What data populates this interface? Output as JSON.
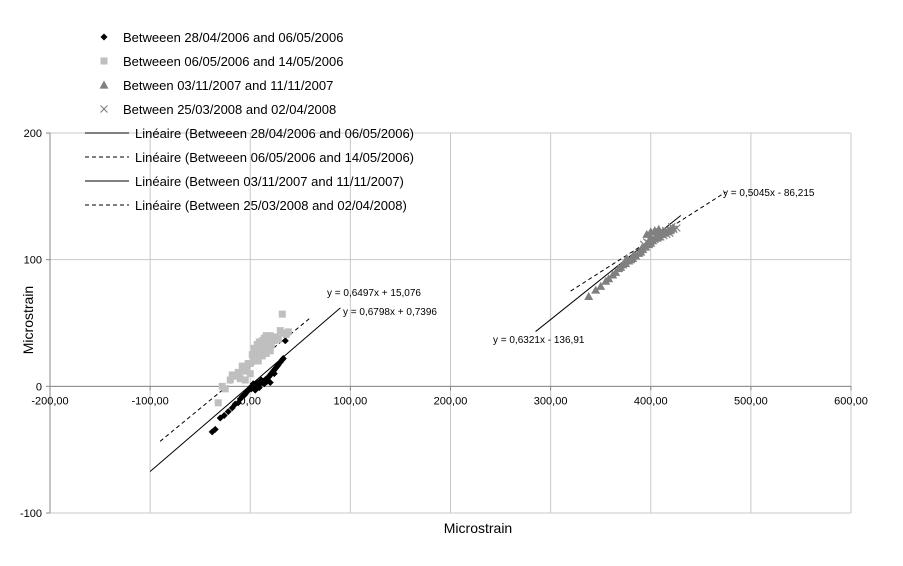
{
  "chart_data": {
    "type": "scatter",
    "title": "",
    "xlabel": "Microstrain",
    "ylabel": "Microstrain",
    "xlim": [
      -200,
      600
    ],
    "ylim": [
      -100,
      200
    ],
    "x_ticks": [
      -200,
      -100,
      0,
      100,
      200,
      300,
      400,
      500,
      600
    ],
    "x_tick_labels": [
      "-200,00",
      "-100,00",
      "0,00",
      "100,00",
      "200,00",
      "300,00",
      "400,00",
      "500,00",
      "600,00"
    ],
    "y_ticks": [
      -100,
      0,
      100,
      200
    ],
    "y_tick_labels": [
      "-100",
      "0",
      "100",
      "200"
    ],
    "grid": true,
    "legend_position": "top-left",
    "series": [
      {
        "name": "Betweeen 28/04/2006 and 06/05/2006",
        "marker": "diamond",
        "color": "#000000",
        "points": [
          [
            -38,
            -36
          ],
          [
            -35,
            -34
          ],
          [
            -30,
            -25
          ],
          [
            -26,
            -23
          ],
          [
            -22,
            -20
          ],
          [
            -18,
            -17
          ],
          [
            -15,
            -14
          ],
          [
            -12,
            -13
          ],
          [
            -10,
            -10
          ],
          [
            -8,
            -8
          ],
          [
            -6,
            -7
          ],
          [
            -4,
            -5
          ],
          [
            -2,
            -3
          ],
          [
            0,
            -1
          ],
          [
            2,
            -1
          ],
          [
            4,
            0
          ],
          [
            6,
            0
          ],
          [
            8,
            1
          ],
          [
            10,
            2
          ],
          [
            12,
            3
          ],
          [
            13,
            4
          ],
          [
            15,
            5
          ],
          [
            16,
            6
          ],
          [
            18,
            7
          ],
          [
            19,
            8
          ],
          [
            20,
            9
          ],
          [
            21,
            10
          ],
          [
            22,
            11
          ],
          [
            23,
            12
          ],
          [
            24,
            13
          ],
          [
            25,
            14
          ],
          [
            26,
            15
          ],
          [
            27,
            16
          ],
          [
            28,
            17
          ],
          [
            30,
            19
          ],
          [
            32,
            21
          ],
          [
            33,
            22
          ],
          [
            35,
            36
          ],
          [
            -5,
            -6
          ],
          [
            3,
            2
          ],
          [
            7,
            3
          ],
          [
            11,
            5
          ],
          [
            14,
            2
          ],
          [
            17,
            4
          ],
          [
            20,
            3
          ],
          [
            -3,
            -4
          ],
          [
            1,
            -2
          ],
          [
            5,
            -3
          ],
          [
            9,
            -1
          ],
          [
            24,
            10
          ]
        ]
      },
      {
        "name": "Betweeen 06/05/2006 and 14/05/2006",
        "marker": "square",
        "color": "#bfbfbf",
        "points": [
          [
            -32,
            -13
          ],
          [
            -28,
            0
          ],
          [
            -25,
            -2
          ],
          [
            -20,
            5
          ],
          [
            -18,
            9
          ],
          [
            -15,
            8
          ],
          [
            -12,
            11
          ],
          [
            -10,
            6
          ],
          [
            -8,
            16
          ],
          [
            -6,
            12
          ],
          [
            -4,
            15
          ],
          [
            -2,
            18
          ],
          [
            0,
            10
          ],
          [
            2,
            25
          ],
          [
            3,
            20
          ],
          [
            4,
            30
          ],
          [
            5,
            23
          ],
          [
            6,
            28
          ],
          [
            7,
            33
          ],
          [
            8,
            26
          ],
          [
            9,
            35
          ],
          [
            10,
            27
          ],
          [
            11,
            30
          ],
          [
            12,
            36
          ],
          [
            13,
            32
          ],
          [
            14,
            38
          ],
          [
            15,
            34
          ],
          [
            16,
            40
          ],
          [
            17,
            31
          ],
          [
            18,
            37
          ],
          [
            19,
            35
          ],
          [
            20,
            40
          ],
          [
            21,
            33
          ],
          [
            22,
            38
          ],
          [
            24,
            36
          ],
          [
            26,
            39
          ],
          [
            28,
            37
          ],
          [
            30,
            44
          ],
          [
            32,
            57
          ],
          [
            33,
            42
          ],
          [
            36,
            41
          ],
          [
            38,
            43
          ],
          [
            -5,
            5
          ],
          [
            0,
            18
          ],
          [
            8,
            20
          ],
          [
            12,
            24
          ],
          [
            16,
            26
          ],
          [
            20,
            28
          ]
        ]
      },
      {
        "name": "Between 03/11/2007 and 11/11/2007",
        "marker": "triangle",
        "color": "#808080",
        "points": [
          [
            338,
            71
          ],
          [
            345,
            76
          ],
          [
            350,
            79
          ],
          [
            355,
            83
          ],
          [
            358,
            85
          ],
          [
            362,
            88
          ],
          [
            365,
            90
          ],
          [
            368,
            93
          ],
          [
            370,
            94
          ],
          [
            372,
            96
          ],
          [
            375,
            97
          ],
          [
            378,
            99
          ],
          [
            380,
            100
          ],
          [
            382,
            101
          ],
          [
            385,
            103
          ],
          [
            388,
            105
          ],
          [
            390,
            106
          ],
          [
            392,
            108
          ],
          [
            395,
            110
          ],
          [
            398,
            112
          ],
          [
            400,
            113
          ],
          [
            402,
            115
          ],
          [
            405,
            117
          ],
          [
            408,
            118
          ],
          [
            410,
            120
          ],
          [
            412,
            121
          ],
          [
            415,
            122
          ],
          [
            418,
            123
          ],
          [
            420,
            124
          ],
          [
            422,
            125
          ],
          [
            396,
            120
          ],
          [
            400,
            122
          ],
          [
            404,
            123
          ],
          [
            408,
            124
          ],
          [
            376,
            101
          ],
          [
            383,
            104
          ],
          [
            391,
            109
          ],
          [
            399,
            116
          ],
          [
            406,
            119
          ],
          [
            414,
            122
          ]
        ]
      },
      {
        "name": "Between 25/03/2008 and 02/04/2008",
        "marker": "cross",
        "color": "#808080",
        "points": [
          [
            393,
            112
          ],
          [
            396,
            114
          ],
          [
            399,
            116
          ],
          [
            402,
            117
          ],
          [
            405,
            118
          ],
          [
            408,
            119
          ],
          [
            411,
            120
          ],
          [
            414,
            121
          ],
          [
            417,
            122
          ],
          [
            420,
            123
          ],
          [
            423,
            124
          ],
          [
            426,
            125
          ],
          [
            398,
            113
          ],
          [
            401,
            115
          ],
          [
            404,
            116
          ],
          [
            407,
            117
          ],
          [
            410,
            118
          ],
          [
            413,
            119
          ],
          [
            416,
            120
          ],
          [
            419,
            121
          ],
          [
            403,
            121
          ],
          [
            409,
            122
          ],
          [
            415,
            123
          ],
          [
            421,
            126
          ]
        ]
      }
    ],
    "trendlines": [
      {
        "name": "Linéaire (Betweeen 28/04/2006 and 06/05/2006)",
        "dash": "solid",
        "slope": 0.6798,
        "intercept": 0.7396,
        "x_range": [
          -100,
          90
        ],
        "equation": "y = 0,6798x + 0,7396"
      },
      {
        "name": "Linéaire (Betweeen 06/05/2006 and 14/05/2006)",
        "dash": "dashed",
        "slope": 0.6497,
        "intercept": 15.076,
        "x_range": [
          -90,
          60
        ],
        "equation": "y = 0,6497x + 15,076"
      },
      {
        "name": "Linéaire (Between 03/11/2007 and 11/11/2007)",
        "dash": "solid",
        "slope": 0.6321,
        "intercept": -136.91,
        "x_range": [
          285,
          430
        ],
        "equation": "y = 0,6321x - 136,91"
      },
      {
        "name": "Linéaire (Between 25/03/2008 and 02/04/2008)",
        "dash": "dashed",
        "slope": 0.5045,
        "intercept": -86.215,
        "x_range": [
          320,
          475
        ],
        "equation": "y = 0,5045x - 86,215"
      }
    ]
  }
}
